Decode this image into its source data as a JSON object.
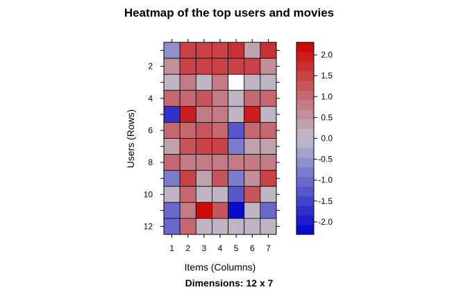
{
  "chart_data": {
    "type": "heatmap",
    "title": "Heatmap of the top users and movies",
    "subtitle": "Dimensions: 12 x 7",
    "xlabel": "Items (Columns)",
    "ylabel": "Users (Rows)",
    "x_ticks": [
      "1",
      "2",
      "3",
      "4",
      "5",
      "6",
      "7"
    ],
    "y_ticks": [
      "2",
      "4",
      "6",
      "8",
      "10",
      "12"
    ],
    "legend": {
      "min": -2.3,
      "max": 2.3,
      "ticks": [
        "2.0",
        "1.5",
        "1.0",
        "0.5",
        "0.0",
        "-0.5",
        "-1.0",
        "-1.5",
        "-2.0"
      ]
    },
    "rows": [
      "1",
      "2",
      "3",
      "4",
      "5",
      "6",
      "7",
      "8",
      "9",
      "10",
      "11",
      "12"
    ],
    "columns": [
      "1",
      "2",
      "3",
      "4",
      "5",
      "6",
      "7"
    ],
    "values": [
      [
        -0.6,
        1.6,
        1.6,
        1.6,
        1.7,
        0.4,
        1.7
      ],
      [
        0.5,
        1.6,
        1.6,
        1.6,
        1.6,
        1.5,
        0.5
      ],
      [
        0.1,
        0.8,
        0.1,
        0.9,
        null,
        0.1,
        0.1
      ],
      [
        1.0,
        1.1,
        1.2,
        0.8,
        0.1,
        1.0,
        1.0
      ],
      [
        -1.7,
        2.0,
        0.8,
        0.8,
        0.1,
        2.0,
        0.1
      ],
      [
        1.0,
        1.1,
        1.2,
        1.1,
        -1.2,
        1.0,
        1.0
      ],
      [
        0.3,
        1.3,
        1.5,
        1.5,
        -0.8,
        0.3,
        0.3
      ],
      [
        1.0,
        0.9,
        0.8,
        0.9,
        0.8,
        0.8,
        0.8
      ],
      [
        -0.7,
        1.4,
        0.4,
        1.3,
        -0.7,
        0.5,
        1.4
      ],
      [
        0.1,
        1.1,
        0.1,
        0.1,
        -1.2,
        1.2,
        0.1
      ],
      [
        -1.1,
        0.9,
        2.3,
        1.2,
        -2.3,
        0.2,
        -1.1
      ],
      [
        -1.0,
        1.0,
        0.1,
        0.1,
        0.1,
        0.1,
        0.1
      ]
    ]
  }
}
